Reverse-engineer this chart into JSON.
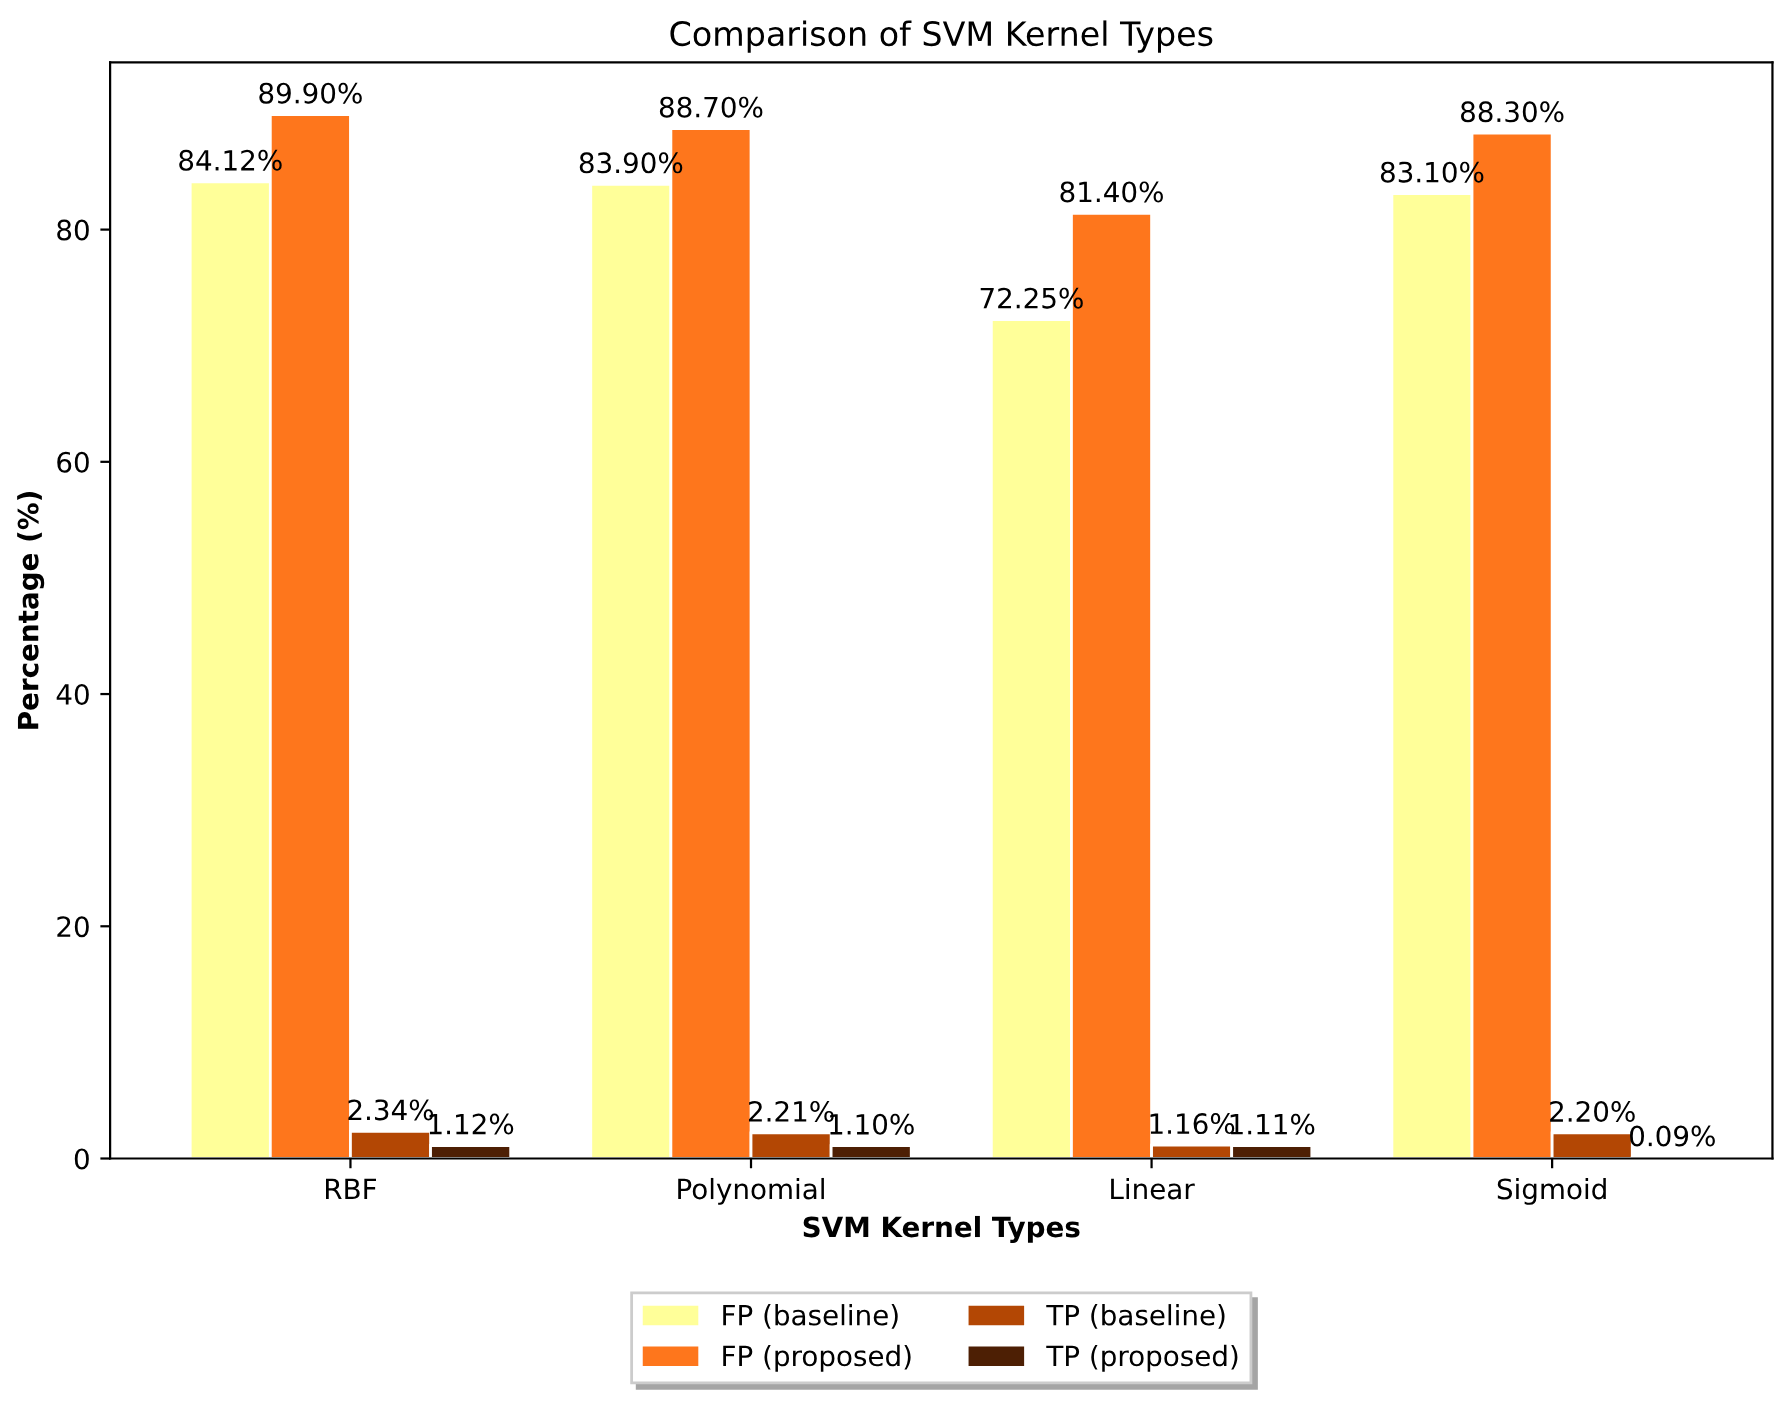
{
  "chart_data": {
    "type": "bar",
    "title": "Comparison of SVM Kernel Types",
    "xlabel": "SVM Kernel Types",
    "ylabel": "Percentage (%)",
    "categories": [
      "RBF",
      "Polynomial",
      "Linear",
      "Sigmoid"
    ],
    "series": [
      {
        "name": "FP (baseline)",
        "color": "#ffff99",
        "values": [
          84.12,
          83.9,
          72.25,
          83.1
        ],
        "value_labels": [
          "84.12%",
          "83.90%",
          "72.25%",
          "83.10%"
        ]
      },
      {
        "name": "FP (proposed)",
        "color": "#fe761c",
        "values": [
          89.9,
          88.7,
          81.4,
          88.3
        ],
        "value_labels": [
          "89.90%",
          "88.70%",
          "81.40%",
          "88.30%"
        ]
      },
      {
        "name": "TP (baseline)",
        "color": "#b34704",
        "values": [
          2.34,
          2.21,
          1.16,
          2.2
        ],
        "value_labels": [
          "2.34%",
          "2.21%",
          "1.16%",
          "2.20%"
        ]
      },
      {
        "name": "TP (proposed)",
        "color": "#4d1f04",
        "values": [
          1.12,
          1.1,
          1.11,
          0.09
        ],
        "value_labels": [
          "1.12%",
          "1.10%",
          "1.11%",
          "0.09%"
        ]
      }
    ],
    "ylim": [
      0,
      94.4
    ],
    "yticks": [
      0,
      20,
      40,
      60,
      80
    ],
    "grid": false,
    "legend": "bottom"
  }
}
